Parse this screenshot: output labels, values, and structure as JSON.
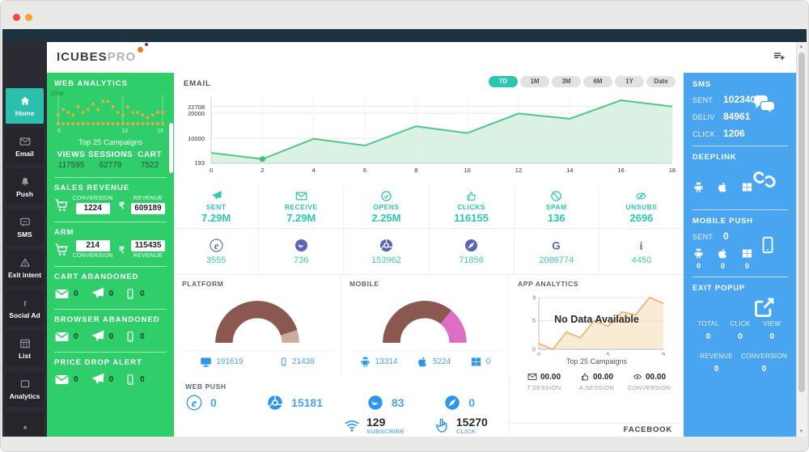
{
  "brand": {
    "left": "ICUBES",
    "right": "PRO"
  },
  "sidebar": {
    "items": [
      {
        "label": "Home",
        "icon": "home"
      },
      {
        "label": "Email",
        "icon": "envelope"
      },
      {
        "label": "Push",
        "icon": "bell"
      },
      {
        "label": "SMS",
        "icon": "comment"
      },
      {
        "label": "Exit intent",
        "icon": "warning"
      },
      {
        "label": "Social Ad",
        "icon": "facebook"
      },
      {
        "label": "List",
        "icon": "table"
      },
      {
        "label": "Analytics",
        "icon": "square"
      },
      {
        "label": "",
        "icon": "asterisk"
      }
    ]
  },
  "web_analytics": {
    "title": "WEB ANALYTICS",
    "y_axis_label": "2398",
    "x_ticks": [
      "0",
      "10",
      "16"
    ],
    "caption": "Top 25 Campaigns",
    "columns": [
      {
        "label": "VIEWS",
        "value": "117595"
      },
      {
        "label": "SESSIONS",
        "value": "62779"
      },
      {
        "label": "CART",
        "value": "7522"
      }
    ]
  },
  "sales_revenue": {
    "title": "SALES REVENUE",
    "conversion_label": "CONVERSION",
    "conversion_value": "1224",
    "revenue_label": "REVENUE",
    "revenue_value": "609189"
  },
  "arm": {
    "title": "ARM",
    "conversion_label": "CONVERSION",
    "conversion_value": "214",
    "revenue_label": "REVENUE",
    "revenue_value": "115435"
  },
  "cart_abandoned": {
    "title": "CART ABANDONED",
    "counts": [
      "0",
      "0",
      "0"
    ]
  },
  "browser_abandoned": {
    "title": "BROWSER ABANDONED",
    "counts": [
      "0",
      "0",
      "0"
    ]
  },
  "price_drop_alert": {
    "title": "PRICE DROP ALERT",
    "counts": [
      "0",
      "0",
      "0"
    ]
  },
  "email_section": {
    "title": "EMAIL",
    "ranges": [
      "7D",
      "1M",
      "3M",
      "6M",
      "1Y",
      "Date"
    ],
    "active_range": "7D",
    "stats": [
      {
        "icon": "plane",
        "label": "SENT",
        "value": "7.29M"
      },
      {
        "icon": "envelope",
        "label": "RECEIVE",
        "value": "7.29M"
      },
      {
        "icon": "check-circle",
        "label": "OPENS",
        "value": "2.25M"
      },
      {
        "icon": "thumb",
        "label": "CLICKS",
        "value": "116155"
      },
      {
        "icon": "ban",
        "label": "SPAM",
        "value": "136"
      },
      {
        "icon": "eyeslash",
        "label": "UNSUBS",
        "value": "2696"
      }
    ]
  },
  "email_browsers": [
    {
      "icon": "ie",
      "value": "3555"
    },
    {
      "icon": "firefox",
      "value": "736"
    },
    {
      "icon": "chrome",
      "value": "153962"
    },
    {
      "icon": "safari",
      "value": "71856"
    },
    {
      "icon": "google",
      "value": "2086774"
    },
    {
      "icon": "info",
      "value": "4450"
    }
  ],
  "platform": {
    "title": "PLATFORM",
    "stats": [
      {
        "icon": "desktop",
        "value": "191619"
      },
      {
        "icon": "mobile",
        "value": "21438"
      }
    ]
  },
  "mobile": {
    "title": "MOBILE",
    "stats": [
      {
        "icon": "android",
        "value": "13314"
      },
      {
        "icon": "apple",
        "value": "5224"
      },
      {
        "icon": "windows",
        "value": "0"
      }
    ]
  },
  "app_analytics": {
    "title": "APP ANALYTICS",
    "overlay": "No Data Available",
    "caption": "Top 25 Campaigns",
    "stats": [
      {
        "icon": "envelope",
        "value": "00.00",
        "label": "T.SESSION"
      },
      {
        "icon": "thumb",
        "value": "00.00",
        "label": "A.SESSION"
      },
      {
        "icon": "eye",
        "value": "00.00",
        "label": "CONVERSION"
      }
    ]
  },
  "web_push": {
    "title": "WEB PUSH",
    "browsers": [
      {
        "icon": "ie",
        "value": "0"
      },
      {
        "icon": "chrome",
        "value": "15181"
      },
      {
        "icon": "firefox",
        "value": "83"
      },
      {
        "icon": "safari",
        "value": "0"
      }
    ],
    "totals": [
      {
        "icon": "wifi",
        "value": "129",
        "label": "SUBSCRIBE"
      },
      {
        "icon": "hand",
        "value": "15270",
        "label": "CLICK"
      }
    ]
  },
  "facebook_section": {
    "title": "FACEBOOK"
  },
  "sms_panel": {
    "title": "SMS",
    "rows": [
      {
        "label": "SENT",
        "value": "102340"
      },
      {
        "label": "DELIV",
        "value": "84961"
      },
      {
        "label": "CLICK",
        "value": "1206"
      }
    ]
  },
  "deeplink": {
    "title": "DEEPLINK"
  },
  "mobile_push": {
    "title": "MOBILE PUSH",
    "sent_label": "SENT",
    "sent_value": "0",
    "os": [
      {
        "icon": "android",
        "value": "0"
      },
      {
        "icon": "apple",
        "value": "0"
      },
      {
        "icon": "windows",
        "value": "0"
      }
    ]
  },
  "exit_popup": {
    "title": "EXIT POPUP",
    "stats": [
      {
        "label": "TOTAL",
        "value": "0"
      },
      {
        "label": "CLICK",
        "value": "0"
      },
      {
        "label": "VIEW",
        "value": "0"
      }
    ],
    "stats2": [
      {
        "label": "REVENUE",
        "value": "0"
      },
      {
        "label": "CONVERSION",
        "value": "0"
      }
    ]
  },
  "colors": {
    "green": "#30ce6b",
    "blue": "#4aa5f0",
    "teal": "#2cc7b0",
    "purple": "#5b67b5",
    "icon_blue": "#2f97e8",
    "brown": "#8a584e",
    "tan": "#d0a99e",
    "pink": "#de6ec4",
    "orange": "#f6a83c"
  },
  "chart_data": [
    {
      "id": "email_traffic",
      "type": "area",
      "title": "EMAIL",
      "x": [
        0,
        2,
        4,
        6,
        8,
        10,
        12,
        14,
        16,
        18
      ],
      "values": [
        4200,
        1700,
        9800,
        7100,
        14800,
        12100,
        19900,
        17800,
        25200,
        22708
      ],
      "ylim": [
        0,
        26500
      ],
      "yticks": [
        22708,
        20000,
        10000,
        193
      ],
      "marker_index": 1,
      "line_color": "#4fc888",
      "fill_color": "#d3efdf",
      "legend": "none",
      "grid": true
    },
    {
      "id": "campaign_scatter",
      "type": "scatter",
      "title": "Top 25 Campaigns",
      "values": [
        2,
        4,
        3,
        2,
        5,
        3,
        4,
        6,
        4,
        7,
        7,
        5,
        3,
        2,
        5,
        3,
        3,
        2,
        1,
        2,
        3,
        3
      ],
      "baseline": true,
      "ymax": 8,
      "color": "#f6a83c",
      "x_tick_positions": [
        0,
        13,
        21
      ],
      "x_tick_labels": [
        "0",
        "10",
        "16"
      ],
      "y_max_label": "2398"
    },
    {
      "id": "platform_gauge",
      "type": "semi-donut",
      "labels": [
        "DESKTOP",
        "MOBILE"
      ],
      "values": [
        191619,
        21438
      ],
      "colors": [
        "#8a584e",
        "#d0a99e"
      ]
    },
    {
      "id": "mobile_gauge",
      "type": "semi-donut",
      "labels": [
        "ANDROID",
        "APPLE"
      ],
      "values": [
        13314,
        5224
      ],
      "colors": [
        "#8a584e",
        "#de6ec4"
      ]
    },
    {
      "id": "app_sessions",
      "type": "area",
      "title": "APP ANALYTICS",
      "x": [
        0,
        1,
        2,
        3,
        4,
        5,
        6,
        7,
        8,
        9
      ],
      "values": [
        1,
        0,
        3,
        2,
        5,
        4,
        6.5,
        6,
        9,
        8
      ],
      "ylim": [
        0,
        9
      ],
      "yticks": [
        0,
        5,
        9
      ],
      "xticks": [
        0,
        5,
        9
      ],
      "line_color": "#f0ad6d",
      "fill_color": "#f7ddb9"
    }
  ]
}
